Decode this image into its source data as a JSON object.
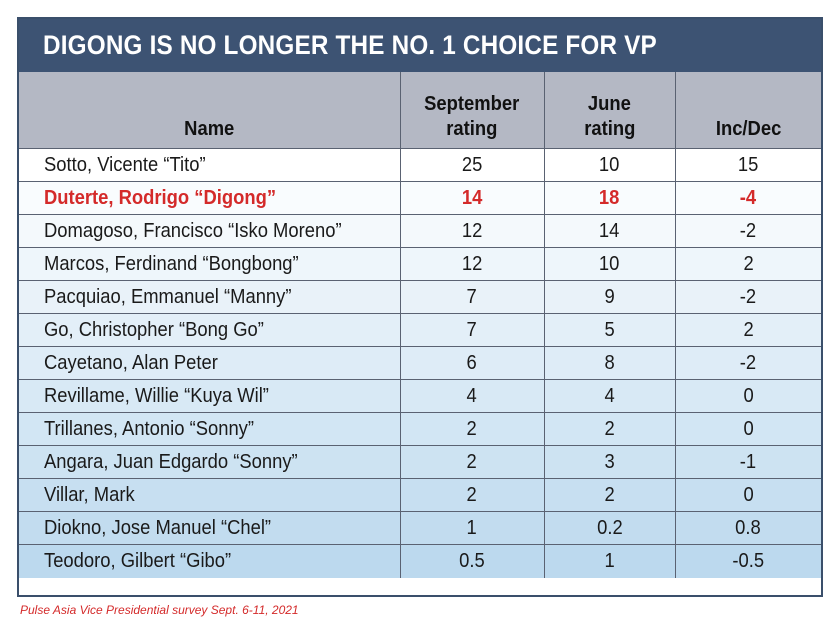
{
  "title": "DIGONG IS NO LONGER THE NO. 1 CHOICE FOR VP",
  "colors": {
    "title_bg": "#3d5373",
    "header_bg": "#b4b8c4",
    "highlight": "#d42a2a",
    "row_gradient_top": "#ffffff",
    "row_gradient_bottom": "#bcd9ee"
  },
  "headers": {
    "name": "Name",
    "september_line1": "September",
    "september_line2": "rating",
    "june_line1": "June",
    "june_line2": "rating",
    "incdec": "Inc/Dec"
  },
  "source": "Pulse Asia Vice Presidential survey Sept. 6-11, 2021",
  "chart_data": {
    "type": "table",
    "title": "DIGONG IS NO LONGER THE NO. 1 CHOICE FOR VP",
    "columns": [
      "Name",
      "September rating",
      "June rating",
      "Inc/Dec"
    ],
    "highlight_row": 1,
    "rows": [
      {
        "name": "Sotto, Vicente “Tito”",
        "september": "25",
        "june": "10",
        "incdec": "15"
      },
      {
        "name": "Duterte, Rodrigo “Digong”",
        "september": "14",
        "june": "18",
        "incdec": "-4"
      },
      {
        "name": "Domagoso, Francisco “Isko Moreno”",
        "september": "12",
        "june": "14",
        "incdec": "-2"
      },
      {
        "name": "Marcos, Ferdinand “Bongbong”",
        "september": "12",
        "june": "10",
        "incdec": "2"
      },
      {
        "name": "Pacquiao, Emmanuel “Manny”",
        "september": "7",
        "june": "9",
        "incdec": "-2"
      },
      {
        "name": "Go, Christopher “Bong Go”",
        "september": "7",
        "june": "5",
        "incdec": "2"
      },
      {
        "name": "Cayetano, Alan Peter",
        "september": "6",
        "june": "8",
        "incdec": "-2"
      },
      {
        "name": "Revillame, Willie “Kuya Wil”",
        "september": "4",
        "june": "4",
        "incdec": "0"
      },
      {
        "name": "Trillanes, Antonio “Sonny”",
        "september": "2",
        "june": "2",
        "incdec": "0"
      },
      {
        "name": "Angara, Juan Edgardo “Sonny”",
        "september": "2",
        "june": "3",
        "incdec": "-1"
      },
      {
        "name": "Villar, Mark",
        "september": "2",
        "june": "2",
        "incdec": "0"
      },
      {
        "name": "Diokno, Jose Manuel “Chel”",
        "september": "1",
        "june": "0.2",
        "incdec": "0.8"
      },
      {
        "name": "Teodoro, Gilbert “Gibo”",
        "september": "0.5",
        "june": "1",
        "incdec": "-0.5"
      }
    ]
  }
}
